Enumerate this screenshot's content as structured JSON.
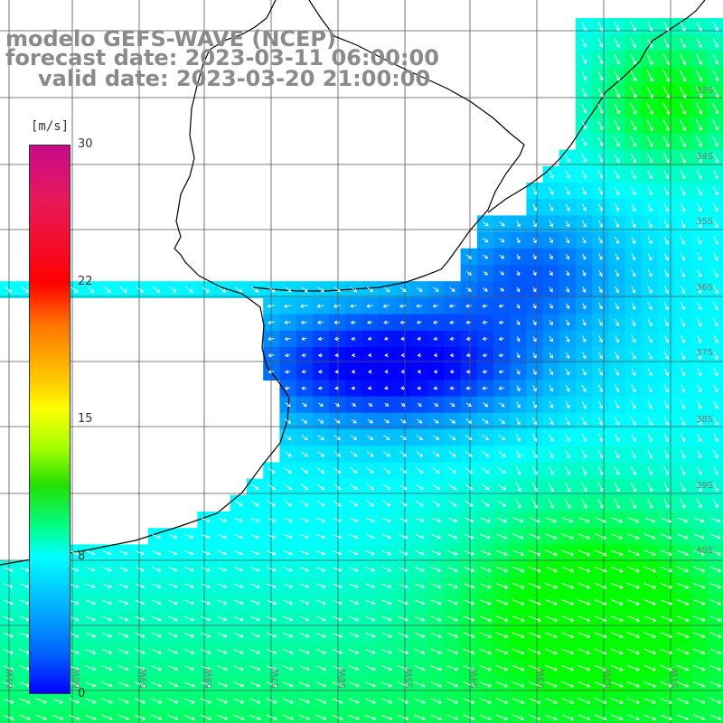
{
  "title": {
    "line1": "modelo GEFS-WAVE (NCEP)",
    "line2": "forecast date: 2023-03-11 06:00:00",
    "line3": "valid date: 2023-03-20 21:00:00"
  },
  "legend": {
    "unit": "[m/s]",
    "ticks": [
      "30",
      "22",
      "15",
      "8",
      "0"
    ]
  },
  "lat_labels": [
    "33S",
    "34S",
    "35S",
    "36S",
    "37S",
    "38S",
    "39S",
    "40S"
  ],
  "lon_labels": [
    "61W",
    "60W",
    "59W",
    "58W",
    "57W",
    "56W",
    "55W",
    "54W",
    "53W",
    "52W",
    "51W"
  ],
  "colors": {
    "land": "#ffffff",
    "grid": "#555555",
    "coast": "#000000",
    "arrows": "#ffffff",
    "calm": "#0000ff",
    "moderate": "#00ffff",
    "fresh": "#00ff00"
  }
}
